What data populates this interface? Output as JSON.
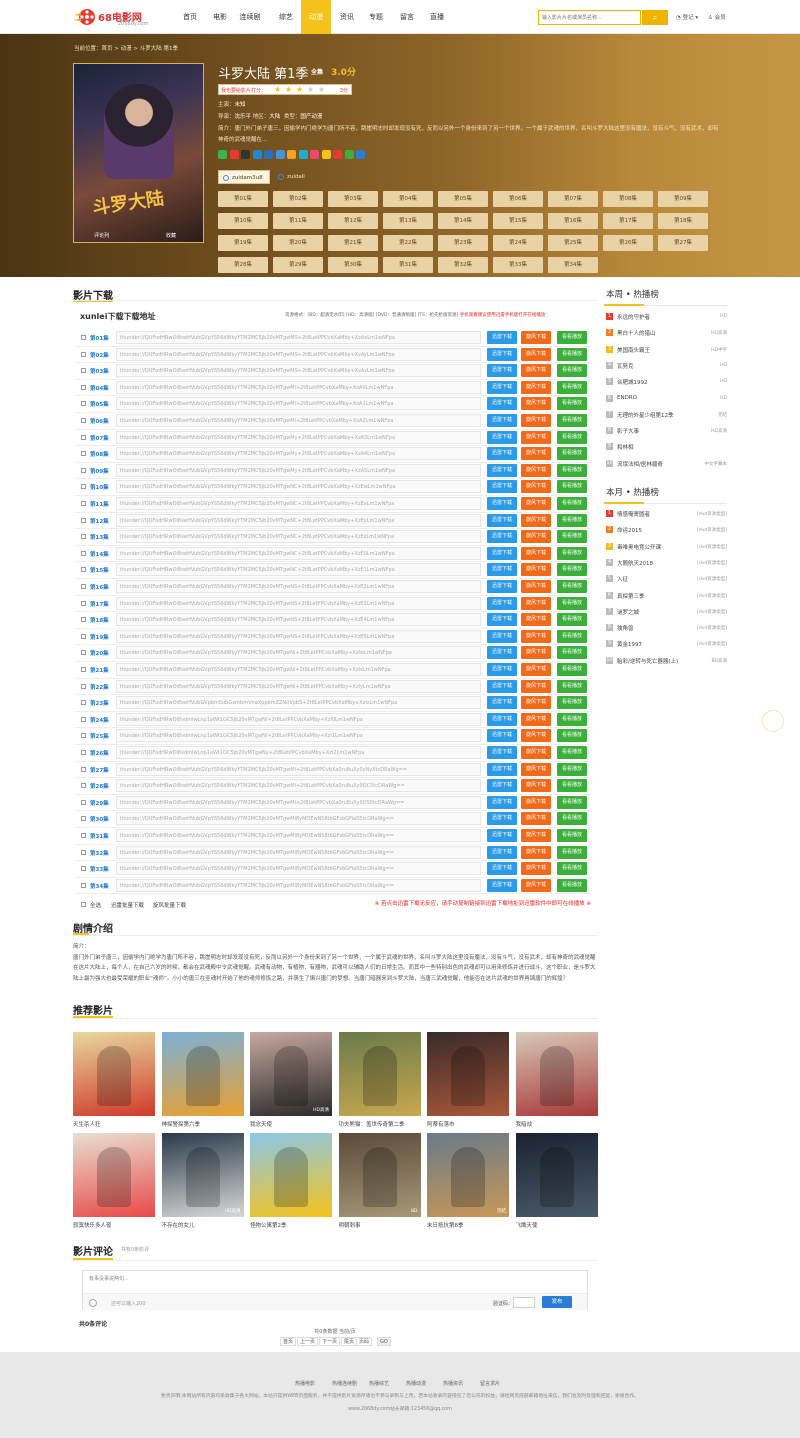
{
  "header": {
    "logo_name": "68电影网",
    "logo_url": "2068dy.com",
    "nav": [
      "首页",
      "电影",
      "连续剧",
      "综艺",
      "动漫",
      "资讯",
      "专题",
      "留言",
      "直播"
    ],
    "nav_active": 4,
    "search_placeholder": "输入影片片名或演员名称...",
    "user_links": [
      "登记",
      "会员"
    ]
  },
  "breadcrumb": "当前位置：首页 > 动漫 > 斗罗大陆 第1季",
  "poster": {
    "title_art": "斗罗大陆",
    "btn_review": "评论列",
    "btn_fav": "收藏"
  },
  "movie": {
    "title": "斗罗大陆 第1季",
    "quality": "全集",
    "score": "3.0分",
    "rate_label": "我也要给影片打分：",
    "rate_stars": 3,
    "rate_value": "3分",
    "lead_label": "主演：",
    "lead": "未知",
    "director_label": "导演：",
    "director": "沈乐平",
    "area_label": "地区：",
    "area": "大陆",
    "type_label": "类型：",
    "type": "国产动漫",
    "desc": "简介：唐门外门弟子唐三，因偷学内门绝学为唐门所不容，跳崖明志时却发现没有死，反而以另外一个身份来到了另一个世界，一个属于武魂的世界，名叫斗罗大陆这里没有魔法，没有斗气，没有武术，却有神奇的武魂觉醒在..."
  },
  "sources": [
    "zuidam3u8",
    "zuidall"
  ],
  "episodes": [
    "第01集",
    "第02集",
    "第03集",
    "第04集",
    "第05集",
    "第06集",
    "第07集",
    "第08集",
    "第09集",
    "第10集",
    "第11集",
    "第12集",
    "第13集",
    "第14集",
    "第15集",
    "第16集",
    "第17集",
    "第18集",
    "第19集",
    "第20集",
    "第21集",
    "第22集",
    "第23集",
    "第24集",
    "第25集",
    "第26集",
    "第27集",
    "第28集",
    "第29集",
    "第30集",
    "第31集",
    "第32集",
    "第33集",
    "第34集"
  ],
  "download": {
    "section_title": "影片下载",
    "sub_title": "xunlei下载下载地址",
    "legend": "资源格式：[BD：超清无水印] [HD：高清版] [DVD：普通清晰版] [TS：抢先枪版资源]",
    "legend_red": "手机观看建议使用迅雷手机版打开在线播放",
    "btn_thunder": "迅雷下载",
    "btn_xuanfeng": "旋风下载",
    "btn_play": "看看播放",
    "links": [
      "thunder://QUFodHRwOi8veHVubGVpYS56dWkyYTM2MC5jb20vMTgwMS+2t8LetPPCvbXaMby+XzAxLm1wNFpa",
      "thunder://QUFodHRwOi8veHVubGVpYS56dWkyYTM2MC5jb20vMTgwMS+2t8LetPPCvbXaMby+XzAyLm1wNFpa",
      "thunder://QUFodHRwOi8veHVubGVpYS56dWkyYTM2MC5jb20vMTgwMS+2t8LetPPCvbXaMby+XzAzLm1wNFpa",
      "thunder://QUFodHRwOi8veHVubGVpYS56dWkyYTM2MC5jb20vMTgwMi+2t8LetPPCvbXaMby+XzA0Lm1wNFpa",
      "thunder://QUFodHRwOi8veHVubGVpYS56dWkyYTM2MC5jb20vMTgwMi+2t8LetPPCvbXaMby+XzA1Lm1wNFpa",
      "thunder://QUFodHRwOi8veHVubGVpYS56dWkyYTM2MC5jb20vMTgwMi+2t8LetPPCvbXaMby+XzA2Lm1wNFpa",
      "thunder://QUFodHRwOi8veHVubGVpYS56dWkyYTM2MC5jb20vMTgwMy+2t8LetPPCvbXaMby+XzA3Lm1wNFpa",
      "thunder://QUFodHRwOi8veHVubGVpYS56dWkyYTM2MC5jb20vMTgwMy+2t8LetPPCvbXaMby+XzA4Lm1wNFpa",
      "thunder://QUFodHRwOi8veHVubGVpYS56dWkyYTM2MC5jb20vMTgwMy+2t8LetPPCvbXaMby+XzA5Lm1wNFpa",
      "thunder://QUFodHRwOi8veHVubGVpYS56dWkyYTM2MC5jb20vMTgwNC+2t8LetPPCvbXaMby+XzEwLm1wNFpa",
      "thunder://QUFodHRwOi8veHVubGVpYS56dWkyYTM2MC5jb20vMTgwNC+2t8LetPPCvbXaMby+XzExLm1wNFpa",
      "thunder://QUFodHRwOi8veHVubGVpYS56dWkyYTM2MC5jb20vMTgwNC+2t8LetPPCvbXaMby+XzEyLm1wNFpa",
      "thunder://QUFodHRwOi8veHVubGVpYS56dWkyYTM2MC5jb20vMTgwNC+2t8LetPPCvbXaMby+XzEzLm1wNFpa",
      "thunder://QUFodHRwOi8veHVubGVpYS56dWkyYTM2MC5jb20vMTgwNC+2t8LetPPCvbXaMby+XzE0Lm1wNFpa",
      "thunder://QUFodHRwOi8veHVubGVpYS56dWkyYTM2MC5jb20vMTgwNC+2t8LetPPCvbXaMby+XzE1Lm1wNFpa",
      "thunder://QUFodHRwOi8veHVubGVpYS56dWkyYTM2MC5jb20vMTgwNS+2t8LetPPCvbXaMby+XzE2Lm1wNFpa",
      "thunder://QUFodHRwOi8veHVubGVpYS56dWkyYTM2MC5jb20vMTgwNS+2t8LetPPCvbXaMby+XzE3Lm1wNFpa",
      "thunder://QUFodHRwOi8veHVubGVpYS56dWkyYTM2MC5jb20vMTgwNS+2t8LetPPCvbXaMby+XzE4Lm1wNFpa",
      "thunder://QUFodHRwOi8veHVubGVpYS56dWkyYTM2MC5jb20vMTgwNS+2t8LetPPCvbXaMby+XzE5Lm1wNFpa",
      "thunder://QUFodHRwOi8veHVubGVpYS56dWkyYTM2MC5jb20vMTgwNi+2t8LetPPCvbXaMby+XzIwLm1wNFpa",
      "thunder://QUFodHRwOi8veHVubGVpYS56dWkyYTM2MC5jb20vMTgwNi+2t8LetPPCvbXaMby+XzIxLm1wNFpa",
      "thunder://QUFodHRwOi8veHVubGVpYS56dWkyYTM2MC5jb20vMTgwNi+2t8LetPPCvbXaMby+XzIyLm1wNFpa",
      "thunder://QUFodHRwOi8veHVubGVpbm5ubGxmbmVnaXppbmZZN0VpbS+2t8LetPPCvbXaMby+XzIzLm1wNFpa",
      "thunder://QUFodHRwOi8vdmlwLnp1aWt1OC5jb20vMTgwNi+2t8LetPPCvbXaMby+XzI0Lm1wNFpa",
      "thunder://QUFodHRwOi8vdmlwLnp1aWt1OC5jb20vMTgwNi+2t8LetPPCvbXaMby+XzI1Lm1wNFpa",
      "thunder://QUFodHRwOi8vdmlwLnp1aWt1OC5jb20vMTgwNy+2t8LetPPCvbXaMby+XzI2Lm1wNFpa",
      "thunder://QUFodHRwOi8veHVubGVpYS56dWkyYTM2MC5jb20vMTgwMi+2t8LetPPCvbXa0ru8uXy0yNy5tcDRaWg==",
      "thunder://QUFodHRwOi8veHVubGVpYS56dWkyYTM2MC5jb20vMTgwMi+2t8LetPPCvbXa0ru8uXy0OC5tcDRaWg==",
      "thunder://QUFodHRwOi8veHVubGVpYS56dWkyYTM2MC5jb20vMTgwMi+2t8LetPPCvbXa0ru8uXy0OS5tcDRaWg==",
      "thunder://QUFodHRwOi8veHVubGVpYS56dWkyYTM2MC5jb20vMTgwMi8yMDEwNS8tbGFsbGFiaS5tcDRaWg==",
      "thunder://QUFodHRwOi8veHVubGVpYS56dWkyYTM2MC5jb20vMTgwMi8yMDEwNS8tbGFsbGFiaS5tcDRaWg==",
      "thunder://QUFodHRwOi8veHVubGVpYS56dWkyYTM2MC5jb20vMTgwMi8yMDEwNS8tbGFsbGFiaS5tcDRaWg==",
      "thunder://QUFodHRwOi8veHVubGVpYS56dWkyYTM2MC5jb20vMTgwMi8yMDEwNS8tbGFsbGFiaS5tcDRaWg==",
      "thunder://QUFodHRwOi8veHVubGVpYS56dWkyYTM2MC5jb20vMTgwMi8yMDEwNS8tbGFsbGFiaS5tcDRaWg=="
    ],
    "select_all": "全选",
    "batch_thunder": "迅雷批量下载",
    "batch_xuanfeng": "旋风批量下载",
    "tip": "※ 若点击迅雷下载无反应，请手动复制链接到迅雷下载地址到迅雷软件中即可在线播放 ※"
  },
  "sidebar": {
    "week_title": "本周 • 热播榜",
    "week": [
      {
        "t": "永远的守护者",
        "q": "HD"
      },
      {
        "t": "黑白十人的猎山",
        "q": "HD高清"
      },
      {
        "t": "美国南头霸王",
        "q": "HD中字"
      },
      {
        "t": "瓦努克",
        "q": "HD"
      },
      {
        "t": "合肥城1992",
        "q": "HD"
      },
      {
        "t": "ENDRO",
        "q": "HD"
      },
      {
        "t": "无理的外星少组第12季",
        "q": "完结"
      },
      {
        "t": "影子大事",
        "q": "HD高清"
      },
      {
        "t": "和林相",
        "q": ""
      },
      {
        "t": "流氓法相/医林疆奇",
        "q": "中文字幕本"
      }
    ],
    "month_title": "本月 • 热播榜",
    "month": [
      {
        "t": "情感俺寄圆者",
        "q": "[dvd资源类型]"
      },
      {
        "t": "命运2015",
        "q": "[dvd资源类型]"
      },
      {
        "t": "毒唯奥电竞公开课",
        "q": "[dvd资源类型]"
      },
      {
        "t": "大颤航天2018",
        "q": "[dvd资源类型]"
      },
      {
        "t": "入征",
        "q": "[dvd资源类型]"
      },
      {
        "t": "真探第三季",
        "q": "[dvd资源类型]"
      },
      {
        "t": "谜罗之城",
        "q": "[dvd资源类型]"
      },
      {
        "t": "独角兽",
        "q": "[dvd资源类型]"
      },
      {
        "t": "黄金1997",
        "q": "[dvd资源类型]"
      },
      {
        "t": "胎彩/逆转与死亡器器(上)",
        "q": "BD高清"
      }
    ]
  },
  "plot": {
    "title": "剧情介绍",
    "label": "简介：",
    "text": "唐门外门弟子唐三，因偷学内门绝学为唐门所不容，跳崖明志时却发现没有死，反而以另外一个身份来到了另一个世界，一个属于武魂的世界，名叫斗罗大陆这里没有魔法，没有斗气，没有武术，却有神奇的武魂觉醒在这片大陆上，每个人，在自己六岁的时候，都会在武魂殿中令武魂觉醒。武魂有动物，有植物，有器物，武魂可以辅助人们的日常生活。而其中一些特别出色的武魂却可以用来修炼并进行战斗，这个职业，是斗罗大陆上最为强大也最受荣耀的职业“魂师”。小小的唐三在圣魂村开始了他的魂师修炼之路，并萌生了振兴唐门的梦想。当唐门暗器来到斗罗大陆，当唐三武魂觉醒，他能否在这片武魂的世界再铸唐门的辉煌？"
  },
  "recommend": {
    "title": "推荐影片",
    "items": [
      {
        "name": "天生杀人狂",
        "tag": ""
      },
      {
        "name": "神探警探第六季",
        "tag": ""
      },
      {
        "name": "我念天使",
        "tag": "HD高清"
      },
      {
        "name": "功夫熊猫：盖世传奇第二季",
        "tag": ""
      },
      {
        "name": "阿蒂有落市",
        "tag": ""
      },
      {
        "name": "我暗战",
        "tag": ""
      },
      {
        "name": "寂寞快乐多人夜",
        "tag": ""
      },
      {
        "name": "不存在的女儿",
        "tag": "HD高清"
      },
      {
        "name": "怪物公寓第2季",
        "tag": ""
      },
      {
        "name": "明朝刺事",
        "tag": "BD"
      },
      {
        "name": "末日抵抗第8季",
        "tag": "完结"
      },
      {
        "name": "飞鹰天使",
        "tag": ""
      }
    ]
  },
  "comment": {
    "title": "影片评论",
    "sub": "共有0条影评",
    "placeholder": "有事没事说两句...",
    "count": "还可以输入200",
    "code_label": "验证码：",
    "send": "发布",
    "total": "共0条评论",
    "page_info": "共0条数据 当前/页",
    "pager": [
      "首页",
      "上一页",
      "下一页",
      "尾页",
      "页码",
      "GO"
    ]
  },
  "footer": {
    "links": [
      "热播电影",
      "热播连续剧",
      "热播综艺",
      "热播动漫",
      "热播资讯",
      "留言求片"
    ],
    "disclaimer": "免责声明:本网站所有内容均系收集于各大网站，本站只提供WEB页面服务，并不提供影片资源存储也不参与录制与上传，若本站收录内容侵犯了您公司的权益，请给网页底部邮箱地址来信，我们会及时处理和回复，谢谢合作。",
    "mail": "www.2068dy.com站长邮箱:123456@qq.com"
  }
}
